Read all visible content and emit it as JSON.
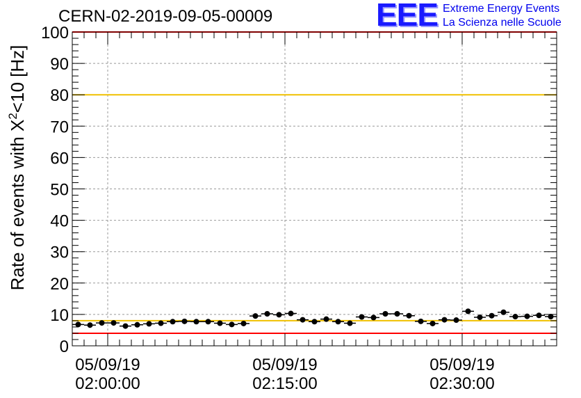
{
  "header": {
    "title": "CERN-02-2019-09-05-00009",
    "logo_mark": "EEE",
    "logo_line1": "Extreme Energy Events",
    "logo_line2": "La Scienza nelle Scuole"
  },
  "chart_data": {
    "type": "scatter",
    "title": "CERN-02-2019-09-05-00009",
    "ylabel_main": "Rate of events with X",
    "ylabel_sup": "2",
    "ylabel_tail": "<10 [Hz]",
    "xlabel": "",
    "ylim": [
      0,
      100
    ],
    "y_ticks": [
      0,
      10,
      20,
      30,
      40,
      50,
      60,
      70,
      80,
      90,
      100
    ],
    "x_ticks": [
      {
        "x": 3,
        "date": "05/09/19",
        "time": "02:00:00"
      },
      {
        "x": 18,
        "date": "05/09/19",
        "time": "02:15:00"
      },
      {
        "x": 33,
        "date": "05/09/19",
        "time": "02:30:00"
      }
    ],
    "xlim": [
      0,
      41
    ],
    "x_unit": "minutes after 01:57",
    "grid": true,
    "reference_lines": [
      {
        "y": 100,
        "color": "#ff0000"
      },
      {
        "y": 80,
        "color": "#f0c000"
      },
      {
        "y": 8,
        "color": "#f0c000"
      },
      {
        "y": 4,
        "color": "#ff0000"
      }
    ],
    "series": [
      {
        "color": "#000000",
        "x": [
          0.5,
          1.5,
          2.5,
          3.5,
          4.5,
          5.5,
          6.5,
          7.5,
          8.5,
          9.5,
          10.5,
          11.5,
          12.5,
          13.5,
          14.5,
          15.5,
          16.5,
          17.5,
          18.5,
          19.5,
          20.5,
          21.5,
          22.5,
          23.5,
          24.5,
          25.5,
          26.5,
          27.5,
          28.5,
          29.5,
          30.5,
          31.5,
          32.5,
          33.5,
          34.5,
          35.5,
          36.5,
          37.5,
          38.5,
          39.5,
          40.5
        ],
        "values": [
          6.8,
          6.6,
          7.3,
          7.3,
          6.3,
          6.7,
          7.0,
          7.2,
          7.7,
          7.8,
          7.7,
          7.7,
          7.2,
          6.8,
          7.1,
          9.5,
          10.2,
          9.9,
          10.3,
          8.3,
          7.7,
          8.5,
          7.7,
          7.2,
          9.2,
          9.0,
          10.2,
          10.2,
          9.6,
          7.8,
          7.1,
          8.3,
          8.2,
          11.0,
          9.1,
          9.6,
          10.7,
          9.3,
          9.4,
          9.7,
          9.3
        ],
        "errors": [
          0.5,
          0.5,
          0.5,
          0.5,
          0.5,
          0.5,
          0.5,
          0.5,
          0.5,
          0.5,
          0.5,
          0.5,
          0.5,
          0.5,
          0.5,
          0.5,
          0.5,
          0.5,
          0.5,
          0.5,
          0.5,
          0.5,
          0.5,
          0.5,
          0.5,
          0.5,
          0.5,
          0.5,
          0.5,
          0.5,
          0.5,
          0.5,
          0.5,
          0.5,
          0.5,
          0.5,
          0.5,
          0.5,
          0.5,
          0.5,
          0.5
        ]
      }
    ]
  }
}
